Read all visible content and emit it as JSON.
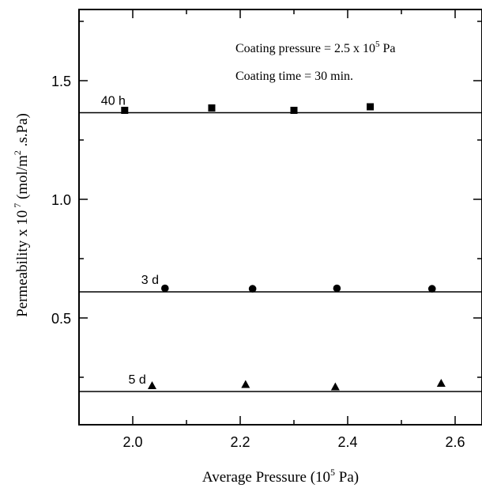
{
  "chart_data": {
    "type": "scatter",
    "title": "",
    "xlabel": {
      "prefix": "Average Pressure (10",
      "sup": "5",
      "suffix": " Pa)"
    },
    "ylabel": {
      "prefix": "Permeability x 10",
      "sup": " 7",
      "mid": " (mol/m",
      "sup2": "2",
      "suffix": " .s.Pa)"
    },
    "xlim": [
      1.9,
      2.65
    ],
    "ylim": [
      0.05,
      1.8
    ],
    "xticks": [
      {
        "v": 2.0,
        "label": "2.0"
      },
      {
        "v": 2.2,
        "label": "2.2"
      },
      {
        "v": 2.4,
        "label": "2.4"
      },
      {
        "v": 2.6,
        "label": "2.6"
      }
    ],
    "yticks": [
      {
        "v": 0.5,
        "label": "0.5"
      },
      {
        "v": 1.0,
        "label": "1.0"
      },
      {
        "v": 1.5,
        "label": "1.5"
      }
    ],
    "annotations": [
      {
        "prefix": "Coating pressure = 2.5 x 10",
        "sup": "5",
        "suffix": " Pa"
      },
      {
        "prefix": "Coating time = 30 min.",
        "sup": "",
        "suffix": ""
      }
    ],
    "series": [
      {
        "name": "40 h",
        "marker": "square",
        "x": [
          1.985,
          2.147,
          2.3,
          2.442
        ],
        "y": [
          1.375,
          1.385,
          1.375,
          1.39
        ],
        "fit": 1.365
      },
      {
        "name": "3 d",
        "marker": "circle",
        "x": [
          2.06,
          2.223,
          2.38,
          2.557
        ],
        "y": [
          0.625,
          0.623,
          0.625,
          0.623
        ],
        "fit": 0.61
      },
      {
        "name": "5 d",
        "marker": "triangle",
        "x": [
          2.036,
          2.21,
          2.377,
          2.574
        ],
        "y": [
          0.215,
          0.22,
          0.21,
          0.225
        ],
        "fit": 0.19
      }
    ]
  }
}
